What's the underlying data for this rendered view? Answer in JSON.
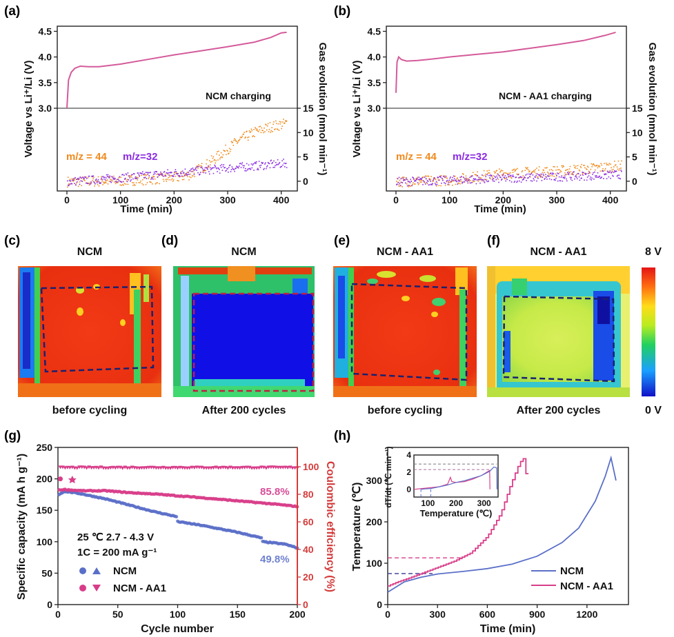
{
  "panels": {
    "a": "(a)",
    "b": "(b)",
    "c": "(c)",
    "d": "(d)",
    "e": "(e)",
    "f": "(f)",
    "g": "(g)",
    "h": "(h)"
  },
  "colors": {
    "voltage_line": "#d45a9a",
    "co2": "#f08a1c",
    "o2": "#8a2be2",
    "ncm_line": "#5a6fc8",
    "aa1_line": "#d83d8a",
    "ce_axis": "#d43a3a",
    "ncm_label": "#6f82d0",
    "aa1_label": "#d84f9a"
  },
  "chart_data": [
    {
      "id": "a",
      "type": "line",
      "annotation": "NCM charging",
      "ylabel_left": "Voltage vs Li⁺/Li (V)",
      "ylabel_right": "Gas evolution (nmol min⁻¹)",
      "xlabel": "Time (min)",
      "xlim": [
        0,
        420
      ],
      "xticks": [
        "0",
        "100",
        "200",
        "300",
        "400"
      ],
      "voltage_ylim": [
        3.0,
        4.6
      ],
      "voltage_yticks": [
        "3.0",
        "3.5",
        "4.0",
        "4.5"
      ],
      "gas_ylim": [
        -2,
        15
      ],
      "gas_yticks": [
        "0",
        "5",
        "10",
        "15"
      ],
      "legend": [
        "m/z = 44",
        "m/z=32"
      ],
      "voltage": {
        "x": [
          0,
          3,
          8,
          15,
          25,
          40,
          60,
          100,
          150,
          200,
          250,
          300,
          350,
          380,
          400,
          410
        ],
        "y": [
          3.0,
          3.55,
          3.7,
          3.78,
          3.82,
          3.81,
          3.81,
          3.86,
          3.95,
          4.04,
          4.12,
          4.2,
          4.29,
          4.38,
          4.47,
          4.48
        ]
      },
      "co2": {
        "x": [
          0,
          100,
          200,
          230,
          260,
          290,
          320,
          350,
          380,
          410
        ],
        "y": [
          0,
          0.2,
          0.8,
          1.5,
          3.5,
          6.0,
          8.5,
          10.2,
          11.3,
          12.0
        ]
      },
      "o2": {
        "x": [
          0,
          100,
          200,
          300,
          410
        ],
        "y": [
          0,
          0.8,
          1.8,
          2.8,
          3.8
        ]
      }
    },
    {
      "id": "b",
      "type": "line",
      "annotation": "NCM - AA1 charging",
      "ylabel_left": "Voltage vs Li⁺/Li (V)",
      "ylabel_right": "Gas evolution (nmol min⁻¹)",
      "xlabel": "Time (min)",
      "xlim": [
        0,
        420
      ],
      "xticks": [
        "0",
        "100",
        "200",
        "300",
        "400"
      ],
      "voltage_ylim": [
        3.0,
        4.6
      ],
      "voltage_yticks": [
        "3.0",
        "3.5",
        "4.0",
        "4.5"
      ],
      "gas_ylim": [
        -2,
        15
      ],
      "gas_yticks": [
        "0",
        "5",
        "10",
        "15"
      ],
      "legend": [
        "m/z = 44",
        "m/z=32"
      ],
      "voltage": {
        "x": [
          0,
          2,
          5,
          10,
          20,
          40,
          60,
          100,
          150,
          200,
          250,
          300,
          350,
          390,
          410
        ],
        "y": [
          3.3,
          3.9,
          4.0,
          3.95,
          3.92,
          3.93,
          3.95,
          4.0,
          4.05,
          4.1,
          4.17,
          4.24,
          4.32,
          4.42,
          4.48
        ]
      },
      "co2": {
        "x": [
          0,
          100,
          160,
          200,
          300,
          350,
          420
        ],
        "y": [
          0,
          0.3,
          1.2,
          1.7,
          2.2,
          2.6,
          3.3
        ]
      },
      "o2": {
        "x": [
          0,
          100,
          200,
          300,
          420
        ],
        "y": [
          0,
          0.3,
          0.7,
          1.0,
          1.5
        ]
      }
    },
    {
      "id": "g",
      "type": "scatter",
      "xlabel": "Cycle number",
      "ylabel": "Specific capacity (mA h g⁻¹)",
      "ylabel_right": "Coulombic efficiency (%)",
      "xlim": [
        0,
        200
      ],
      "xticks": [
        "0",
        "50",
        "100",
        "150",
        "200"
      ],
      "ylim": [
        0,
        250
      ],
      "yticks": [
        "0",
        "50",
        "100",
        "150",
        "200",
        "250"
      ],
      "ylim_right": [
        0,
        114
      ],
      "yticks_right": [
        "0",
        "20",
        "40",
        "60",
        "80",
        "100"
      ],
      "conditions": [
        "25 ℃ 2.7 - 4.3 V",
        "1C = 200 mA g⁻¹"
      ],
      "legend": [
        "NCM",
        "NCM - AA1"
      ],
      "retention_ncm": "49.8%",
      "retention_aa1": "85.8%",
      "ncm_capacity": {
        "x": [
          1,
          5,
          10,
          20,
          40,
          60,
          80,
          99,
          100,
          120,
          150,
          170,
          171,
          190,
          200
        ],
        "y": [
          175,
          180,
          179,
          176,
          168,
          158,
          148,
          140,
          132,
          126,
          115,
          106,
          100,
          96,
          90
        ]
      },
      "aa1_capacity": {
        "x": [
          1,
          5,
          20,
          40,
          60,
          80,
          100,
          120,
          150,
          180,
          200
        ],
        "y": [
          182,
          183,
          181,
          181,
          178,
          176,
          173,
          170,
          165,
          160,
          156
        ]
      },
      "ce_percent": 99.5
    },
    {
      "id": "h",
      "type": "line",
      "xlabel": "Time (min)",
      "ylabel": "Temperature (℃)",
      "xlim": [
        0,
        1400
      ],
      "xticks": [
        "0",
        "300",
        "600",
        "900",
        "1200"
      ],
      "ylim": [
        0,
        380
      ],
      "yticks": [
        "0",
        "100",
        "200",
        "300"
      ],
      "legend": [
        "NCM",
        "NCM - AA1"
      ],
      "ncm": {
        "x": [
          0,
          100,
          200,
          300,
          450,
          600,
          750,
          900,
          1050,
          1150,
          1250,
          1310,
          1345,
          1375
        ],
        "y": [
          30,
          55,
          66,
          74,
          80,
          87,
          98,
          117,
          150,
          185,
          250,
          310,
          355,
          300
        ]
      },
      "aa1": {
        "x": [
          0,
          60,
          120,
          200,
          300,
          400,
          500,
          600,
          680,
          740,
          790,
          815,
          835
        ],
        "y": [
          45,
          55,
          63,
          75,
          90,
          105,
          125,
          165,
          220,
          290,
          340,
          355,
          310
        ]
      },
      "inset": {
        "xlabel": "Temperature (℃)",
        "ylabel": "dT/dt (℃ min⁻¹)",
        "xlim": [
          50,
          350
        ],
        "xticks": [
          "100",
          "200",
          "300"
        ],
        "ylim": [
          -0.9,
          4
        ],
        "yticks": [
          "0",
          "2",
          "4"
        ],
        "ncm": {
          "x": [
            75,
            90,
            110,
            140,
            170,
            200,
            230,
            260,
            290,
            320,
            335,
            345,
            346
          ],
          "y": [
            0.0,
            0.05,
            0.1,
            0.3,
            0.5,
            0.8,
            1.0,
            1.3,
            1.6,
            2.1,
            2.6,
            2.5,
            0.0
          ]
        },
        "aa1": {
          "x": [
            50,
            80,
            110,
            140,
            170,
            180,
            185,
            200,
            230,
            260,
            290,
            310,
            320,
            321
          ],
          "y": [
            0.0,
            0.1,
            0.2,
            0.3,
            0.6,
            1.4,
            0.9,
            0.8,
            0.9,
            1.2,
            1.6,
            2.0,
            2.2,
            0.0
          ]
        }
      }
    }
  ],
  "heatmaps": {
    "c": {
      "title": "NCM",
      "caption": "before cycling"
    },
    "d": {
      "title": "NCM",
      "caption": "After 200 cycles"
    },
    "e": {
      "title": "NCM - AA1",
      "caption": "before cycling"
    },
    "f": {
      "title": "NCM - AA1",
      "caption": "After 200 cycles"
    },
    "colorbar": {
      "max_label": "8 V",
      "min_label": "0 V"
    }
  }
}
